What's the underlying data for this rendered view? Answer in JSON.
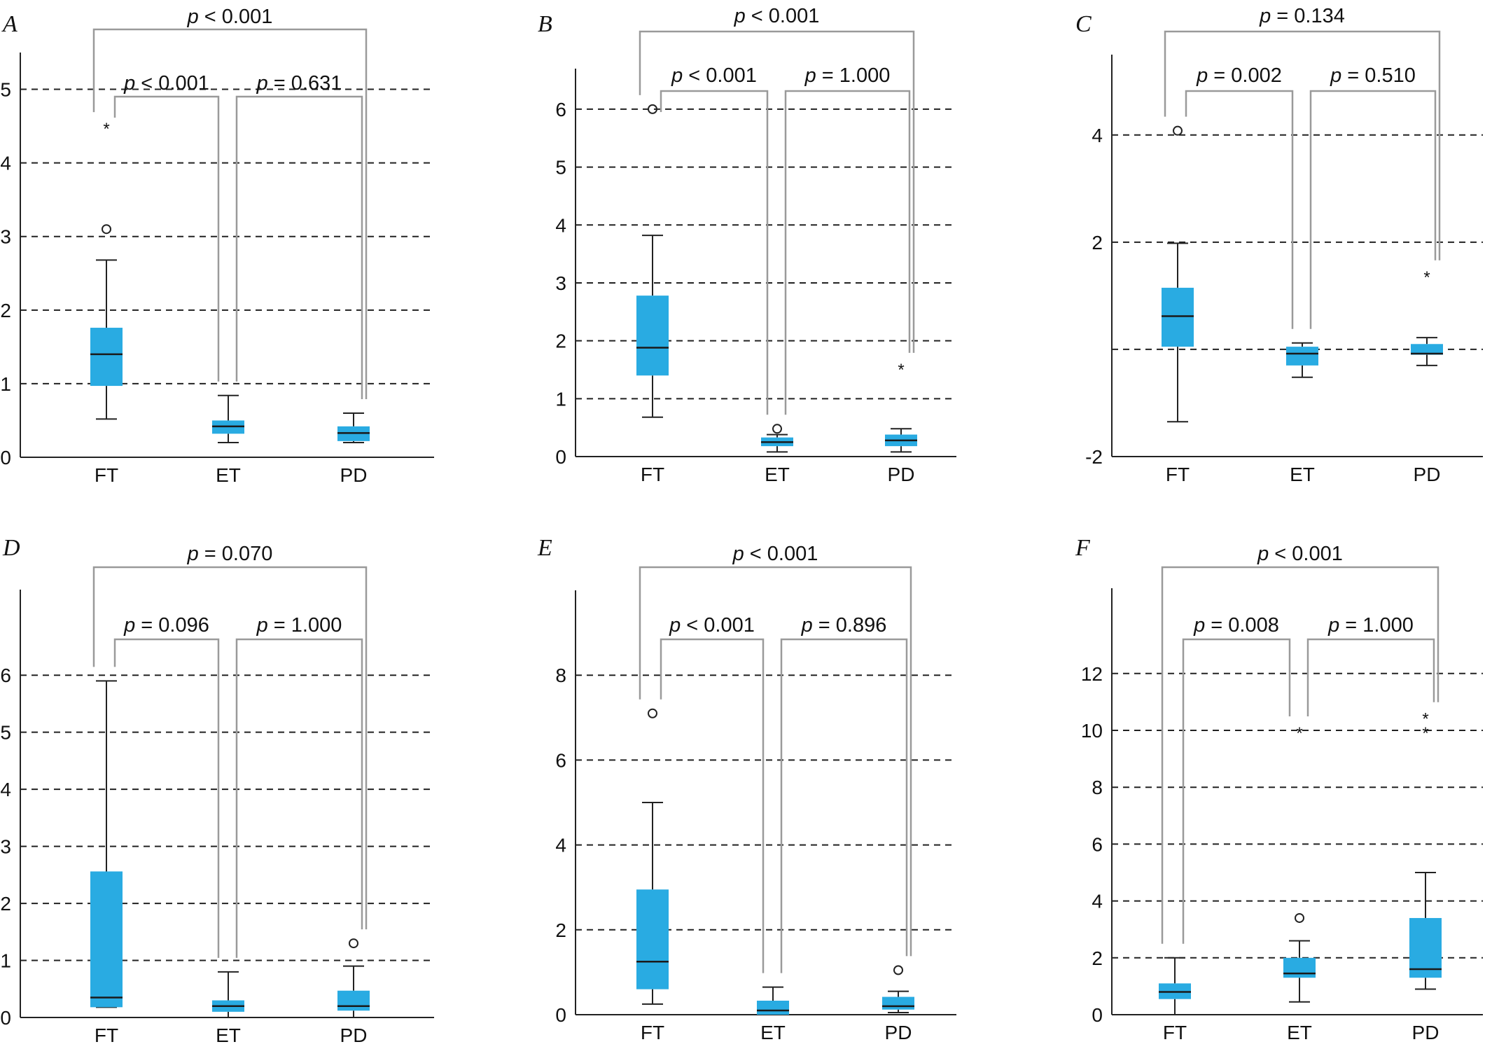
{
  "categories": [
    "FT",
    "ET",
    "PD"
  ],
  "chart_data": [
    {
      "type": "box",
      "panel": "A",
      "categories": [
        "FT",
        "ET",
        "PD"
      ],
      "ylim": [
        0,
        5.5
      ],
      "yticks": [
        0,
        1,
        2,
        3,
        4,
        5
      ],
      "grid_y": [
        1,
        2,
        3,
        4,
        5
      ],
      "boxes": [
        {
          "category": "FT",
          "min": 0.52,
          "q1": 0.97,
          "median": 1.4,
          "q3": 1.76,
          "max": 2.68,
          "outliers": [
            3.1
          ],
          "extremes": [
            4.5
          ]
        },
        {
          "category": "ET",
          "min": 0.2,
          "q1": 0.32,
          "median": 0.42,
          "q3": 0.5,
          "max": 0.84,
          "outliers": [],
          "extremes": []
        },
        {
          "category": "PD",
          "min": 0.2,
          "q1": 0.22,
          "median": 0.33,
          "q3": 0.42,
          "max": 0.6,
          "outliers": [],
          "extremes": []
        }
      ],
      "comparisons": [
        {
          "between": [
            "FT",
            "PD"
          ],
          "label": "p < 0.001"
        },
        {
          "between": [
            "FT",
            "ET"
          ],
          "label": "p < 0.001"
        },
        {
          "between": [
            "ET",
            "PD"
          ],
          "label": "p = 0.631"
        }
      ]
    },
    {
      "type": "box",
      "panel": "B",
      "categories": [
        "FT",
        "ET",
        "PD"
      ],
      "ylim": [
        0,
        6.7
      ],
      "yticks": [
        0,
        1,
        2,
        3,
        4,
        5,
        6
      ],
      "grid_y": [
        1,
        2,
        3,
        4,
        5,
        6
      ],
      "boxes": [
        {
          "category": "FT",
          "min": 0.68,
          "q1": 1.4,
          "median": 1.88,
          "q3": 2.78,
          "max": 3.82,
          "outliers": [
            6.0
          ],
          "extremes": []
        },
        {
          "category": "ET",
          "min": 0.08,
          "q1": 0.18,
          "median": 0.25,
          "q3": 0.33,
          "max": 0.38,
          "outliers": [
            0.48
          ],
          "extremes": []
        },
        {
          "category": "PD",
          "min": 0.08,
          "q1": 0.18,
          "median": 0.28,
          "q3": 0.38,
          "max": 0.48,
          "outliers": [],
          "extremes": [
            1.55
          ]
        }
      ],
      "comparisons": [
        {
          "between": [
            "FT",
            "PD"
          ],
          "label": "p < 0.001"
        },
        {
          "between": [
            "FT",
            "ET"
          ],
          "label": "p < 0.001"
        },
        {
          "between": [
            "ET",
            "PD"
          ],
          "label": "p = 1.000"
        }
      ]
    },
    {
      "type": "box",
      "panel": "C",
      "categories": [
        "FT",
        "ET",
        "PD"
      ],
      "ylim": [
        -2,
        5.5
      ],
      "yticks": [
        -2,
        2,
        4
      ],
      "grid_y": [
        0,
        2,
        4
      ],
      "boxes": [
        {
          "category": "FT",
          "min": -1.35,
          "q1": 0.05,
          "median": 0.62,
          "q3": 1.15,
          "max": 1.98,
          "outliers": [
            4.08
          ],
          "extremes": []
        },
        {
          "category": "ET",
          "min": -0.52,
          "q1": -0.3,
          "median": -0.08,
          "q3": 0.05,
          "max": 0.12,
          "outliers": [],
          "extremes": []
        },
        {
          "category": "PD",
          "min": -0.3,
          "q1": -0.1,
          "median": -0.08,
          "q3": 0.1,
          "max": 0.22,
          "outliers": [],
          "extremes": [
            1.4
          ]
        }
      ],
      "comparisons": [
        {
          "between": [
            "FT",
            "PD"
          ],
          "label": "p = 0.134"
        },
        {
          "between": [
            "FT",
            "ET"
          ],
          "label": "p = 0.002"
        },
        {
          "between": [
            "ET",
            "PD"
          ],
          "label": "p = 0.510"
        }
      ]
    },
    {
      "type": "box",
      "panel": "D",
      "categories": [
        "FT",
        "ET",
        "PD"
      ],
      "ylim": [
        0,
        7.5
      ],
      "yticks": [
        0,
        1,
        2,
        3,
        4,
        5,
        6
      ],
      "grid_y": [
        1,
        2,
        3,
        4,
        5,
        6
      ],
      "boxes": [
        {
          "category": "FT",
          "min": 0.18,
          "q1": 0.18,
          "median": 0.35,
          "q3": 2.56,
          "max": 5.9,
          "outliers": [],
          "extremes": []
        },
        {
          "category": "ET",
          "min": 0.0,
          "q1": 0.1,
          "median": 0.2,
          "q3": 0.3,
          "max": 0.8,
          "outliers": [],
          "extremes": []
        },
        {
          "category": "PD",
          "min": 0.0,
          "q1": 0.12,
          "median": 0.2,
          "q3": 0.47,
          "max": 0.9,
          "outliers": [
            1.3
          ],
          "extremes": []
        }
      ],
      "comparisons": [
        {
          "between": [
            "FT",
            "PD"
          ],
          "label": "p = 0.070"
        },
        {
          "between": [
            "FT",
            "ET"
          ],
          "label": "p = 0.096"
        },
        {
          "between": [
            "ET",
            "PD"
          ],
          "label": "p = 1.000"
        }
      ]
    },
    {
      "type": "box",
      "panel": "E",
      "categories": [
        "FT",
        "ET",
        "PD"
      ],
      "ylim": [
        0,
        10
      ],
      "yticks": [
        0,
        2,
        4,
        6,
        8
      ],
      "grid_y": [
        2,
        4,
        6,
        8
      ],
      "boxes": [
        {
          "category": "FT",
          "min": 0.25,
          "q1": 0.6,
          "median": 1.25,
          "q3": 2.95,
          "max": 5.0,
          "outliers": [
            7.1
          ],
          "extremes": []
        },
        {
          "category": "ET",
          "min": 0.0,
          "q1": 0.0,
          "median": 0.1,
          "q3": 0.33,
          "max": 0.65,
          "outliers": [],
          "extremes": []
        },
        {
          "category": "PD",
          "min": 0.05,
          "q1": 0.12,
          "median": 0.2,
          "q3": 0.42,
          "max": 0.55,
          "outliers": [
            1.05
          ],
          "extremes": []
        }
      ],
      "comparisons": [
        {
          "between": [
            "FT",
            "PD"
          ],
          "label": "p < 0.001"
        },
        {
          "between": [
            "FT",
            "ET"
          ],
          "label": "p < 0.001"
        },
        {
          "between": [
            "ET",
            "PD"
          ],
          "label": "p = 0.896"
        }
      ]
    },
    {
      "type": "box",
      "panel": "F",
      "categories": [
        "FT",
        "ET",
        "PD"
      ],
      "ylim": [
        0,
        15
      ],
      "yticks": [
        0,
        2,
        4,
        6,
        8,
        10,
        12
      ],
      "grid_y": [
        2,
        4,
        6,
        8,
        10,
        12
      ],
      "boxes": [
        {
          "category": "FT",
          "min": 0.0,
          "q1": 0.55,
          "median": 0.8,
          "q3": 1.1,
          "max": 2.0,
          "outliers": [],
          "extremes": []
        },
        {
          "category": "ET",
          "min": 0.45,
          "q1": 1.3,
          "median": 1.45,
          "q3": 2.0,
          "max": 2.6,
          "outliers": [
            3.4
          ],
          "extremes": [
            10.0
          ]
        },
        {
          "category": "PD",
          "min": 0.9,
          "q1": 1.3,
          "median": 1.6,
          "q3": 3.4,
          "max": 5.0,
          "outliers": [],
          "extremes": [
            10.5,
            10.0
          ]
        }
      ],
      "comparisons": [
        {
          "between": [
            "FT",
            "PD"
          ],
          "label": "p < 0.001"
        },
        {
          "between": [
            "FT",
            "ET"
          ],
          "label": "p = 0.008"
        },
        {
          "between": [
            "ET",
            "PD"
          ],
          "label": "p = 1.000"
        }
      ]
    }
  ]
}
